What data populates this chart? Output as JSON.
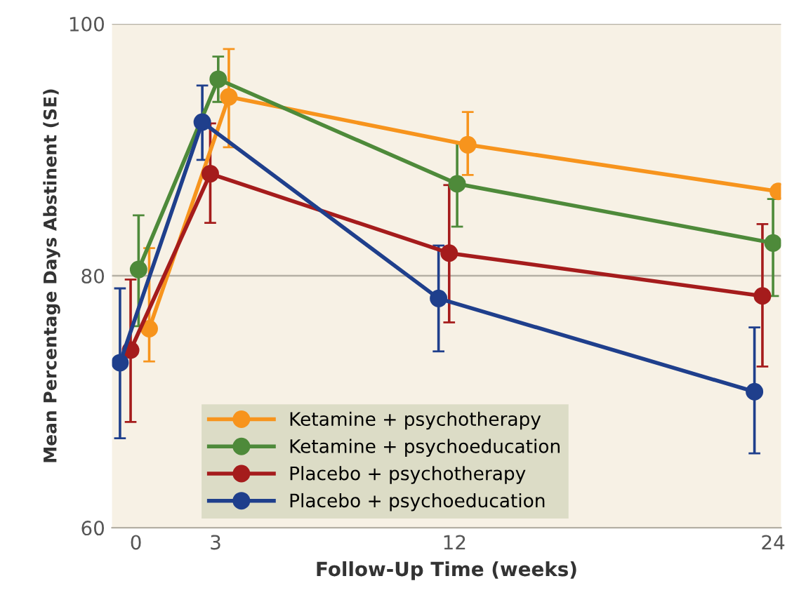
{
  "chart_data": {
    "type": "line",
    "xlabel": "Follow-Up Time (weeks)",
    "ylabel": "Mean Percentage Days Abstinent (SE)",
    "xlim": [
      -0.9,
      24.3
    ],
    "xticks": [
      0,
      3,
      12,
      24
    ],
    "ylim": [
      60,
      100
    ],
    "yticks": [
      60,
      80,
      100
    ],
    "grid": "y",
    "legend": "bottom left",
    "marker": "circle",
    "line_style": "solid",
    "series": [
      {
        "name": "Ketamine + psychotherapy",
        "color": "#f7941d",
        "x": [
          0.5,
          3.5,
          12.5,
          24.2
        ],
        "values": [
          75.8,
          94.2,
          90.4,
          86.7
        ],
        "errors": [
          [
            73.2,
            82.2
          ],
          [
            90.2,
            98.0
          ],
          [
            88.0,
            93.0
          ],
          null
        ]
      },
      {
        "name": "Ketamine + psychoeducation",
        "color": "#4e8a3a",
        "x": [
          0.1,
          3.1,
          12.1,
          24.0
        ],
        "values": [
          80.5,
          95.6,
          87.3,
          82.6
        ],
        "errors": [
          [
            76.0,
            84.8
          ],
          [
            93.8,
            97.4
          ],
          [
            83.9,
            90.6
          ],
          [
            78.4,
            86.1
          ]
        ]
      },
      {
        "name": "Placebo + psychotherapy",
        "color": "#a51c1c",
        "x": [
          -0.2,
          2.8,
          11.8,
          23.6
        ],
        "values": [
          74.1,
          88.1,
          81.8,
          78.4
        ],
        "errors": [
          [
            68.4,
            79.7
          ],
          [
            84.2,
            92.1
          ],
          [
            76.3,
            87.2
          ],
          [
            72.8,
            84.1
          ]
        ]
      },
      {
        "name": "Placebo + psychoeducation",
        "color": "#1f3f8c",
        "x": [
          -0.6,
          2.5,
          11.4,
          23.3
        ],
        "values": [
          73.1,
          92.2,
          78.2,
          70.8
        ],
        "errors": [
          [
            67.1,
            79.0
          ],
          [
            89.2,
            95.1
          ],
          [
            74.0,
            82.4
          ],
          [
            65.9,
            75.9
          ]
        ]
      }
    ]
  }
}
